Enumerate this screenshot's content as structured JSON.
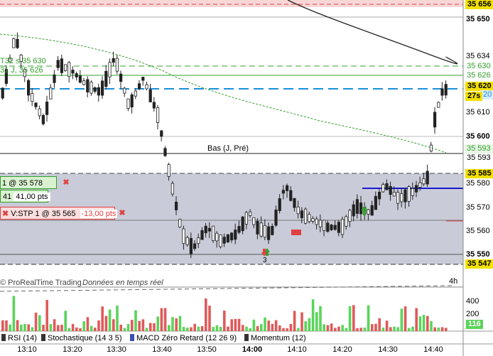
{
  "price_axis": {
    "labels": [
      "35 656",
      "35 650",
      "35 634",
      "35 630",
      "35 626",
      "35 620",
      "35 610",
      "35 600",
      "35 593",
      "35 593",
      "35 585",
      "35 580",
      "35 570",
      "35 560",
      "35 550",
      "35 547"
    ],
    "highlight": {
      "current": "35 620",
      "current_extra": "20",
      "countdown": "27s",
      "low": "35 585",
      "bottom": "35 547",
      "top": "35 656"
    }
  },
  "chart_labels": {
    "order_lines": "T32 ≤ 35 630\n31 J, 35 626",
    "order_line_1": "T32 ≤ 35 630",
    "order_line_2": "31 J, 35 626",
    "bas": "Bas (J, Pré)",
    "watermark": "© ProRealTime Trading",
    "realtime": "Données en temps réel",
    "timeframe": "4h",
    "marker_count": "3"
  },
  "orders": {
    "limit": {
      "label": "1 @ 35 578",
      "pts_prefix": "41",
      "pts": "41,00 pts"
    },
    "stop": {
      "label": "V:STP  1 @ 35 565",
      "pts": "-13,00 pts"
    }
  },
  "volume_axis": {
    "labels": [
      "400",
      "200"
    ],
    "badge": "116"
  },
  "indicator_tabs": [
    {
      "label": "RSI (14)",
      "color": "#333333"
    },
    {
      "label": "Stochastique (14 3 5)",
      "color": "#333333"
    },
    {
      "label": "MACD Zéro Retard (12 26 9)",
      "color": "#3b4fb5"
    },
    {
      "label": "Momentum (12)",
      "color": "#333333"
    }
  ],
  "time_axis": {
    "labels": [
      "13:10",
      "13:20",
      "13:30",
      "13:40",
      "13:50",
      "14:00",
      "14:10",
      "14:20",
      "14:30",
      "14:40"
    ],
    "bold_index": 5
  },
  "colors": {
    "up": "#ffffff",
    "down": "#222222",
    "limit": "#33a02c",
    "stop": "#e04040",
    "highlight": "#f2e000",
    "volume_up": "#5ad45a",
    "volume_down": "#e05a5a",
    "grid_band": "#c9cbd8"
  }
}
